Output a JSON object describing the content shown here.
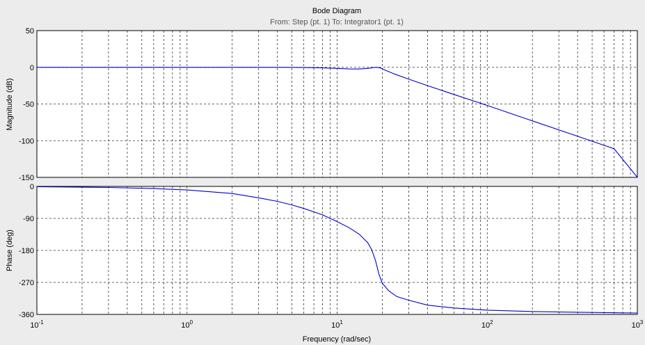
{
  "chart_data": {
    "type": "line",
    "title": "Bode Diagram",
    "subtitle": "From: Step (pt. 1)  To: Integrator1 (pt. 1)",
    "xlabel": "Frequency  (rad/sec)",
    "xscale": "log",
    "xlim": [
      0.1,
      1000
    ],
    "x_ticks": [
      {
        "base": "10",
        "exp": "-1"
      },
      {
        "base": "10",
        "exp": "0"
      },
      {
        "base": "10",
        "exp": "1"
      },
      {
        "base": "10",
        "exp": "2"
      },
      {
        "base": "10",
        "exp": "3"
      }
    ],
    "grid": true,
    "color": "#0000cc",
    "panels": [
      {
        "name": "magnitude",
        "ylabel": "Magnitude (dB)",
        "ylim": [
          -150,
          50
        ],
        "y_ticks": [
          "50",
          "0",
          "-50",
          "-100",
          "-150"
        ],
        "x": [
          0.1,
          1,
          4.5,
          6,
          8,
          10,
          12,
          14,
          16,
          17.5,
          18.5,
          19.5,
          21,
          24,
          28,
          40,
          60,
          100,
          200,
          400,
          700,
          1000
        ],
        "y": [
          0,
          0,
          0,
          -0.3,
          -0.8,
          -1.5,
          -2.2,
          -2.3,
          -1.5,
          -0.3,
          0,
          -1,
          -4,
          -9,
          -14,
          -25,
          -37,
          -52,
          -73,
          -94,
          -111,
          -150
        ]
      },
      {
        "name": "phase",
        "ylabel": "Phase (deg)",
        "ylim": [
          -360,
          0
        ],
        "y_ticks": [
          "0",
          "-90",
          "-180",
          "-270",
          "-360"
        ],
        "x": [
          0.1,
          0.3,
          0.6,
          1,
          2,
          3,
          4,
          5,
          6,
          8,
          10,
          12,
          14,
          16,
          17,
          18,
          19,
          20,
          22,
          25,
          30,
          40,
          60,
          100,
          200,
          400,
          1000
        ],
        "y": [
          -1,
          -3,
          -6,
          -10,
          -20,
          -32,
          -42,
          -52,
          -62,
          -80,
          -99,
          -116,
          -134,
          -158,
          -178,
          -208,
          -247,
          -272,
          -293,
          -310,
          -320,
          -334,
          -342,
          -348,
          -352,
          -354,
          -356
        ]
      }
    ]
  }
}
